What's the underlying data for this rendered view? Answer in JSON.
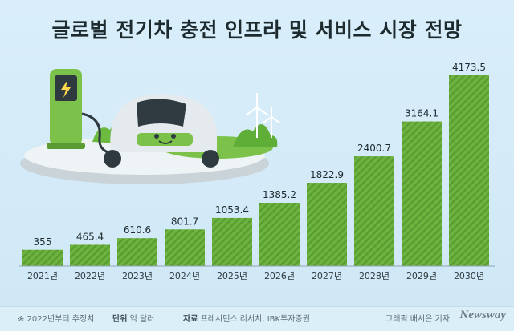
{
  "title": "글로벌 전기차 충전 인프라 및 서비스 시장 전망",
  "footer": {
    "note": "※ 2022년부터 추정치",
    "unit_label": "단위",
    "unit_value": "억 달러",
    "source_label": "자료",
    "source_value": "프레시던스 리서치, IBK투자증권",
    "credit": "그래픽 배서은 기자",
    "brand": "Newsway"
  },
  "colors": {
    "bar": "#6db33f",
    "bar_stripe": "#5a9c31",
    "background": "#d9eefa"
  },
  "chart_data": {
    "type": "bar",
    "title": "글로벌 전기차 충전 인프라 및 서비스 시장 전망",
    "categories": [
      "2021년",
      "2022년",
      "2023년",
      "2024년",
      "2025년",
      "2026년",
      "2027년",
      "2028년",
      "2029년",
      "2030년"
    ],
    "values": [
      355,
      465.4,
      610.6,
      801.7,
      1053.4,
      1385.2,
      1822.9,
      2400.7,
      3164.1,
      4173.5
    ],
    "value_labels": [
      "355",
      "465.4",
      "610.6",
      "801.7",
      "1053.4",
      "1385.2",
      "1822.9",
      "2400.7",
      "3164.1",
      "4173.5"
    ],
    "grid": false,
    "legend": "none"
  }
}
